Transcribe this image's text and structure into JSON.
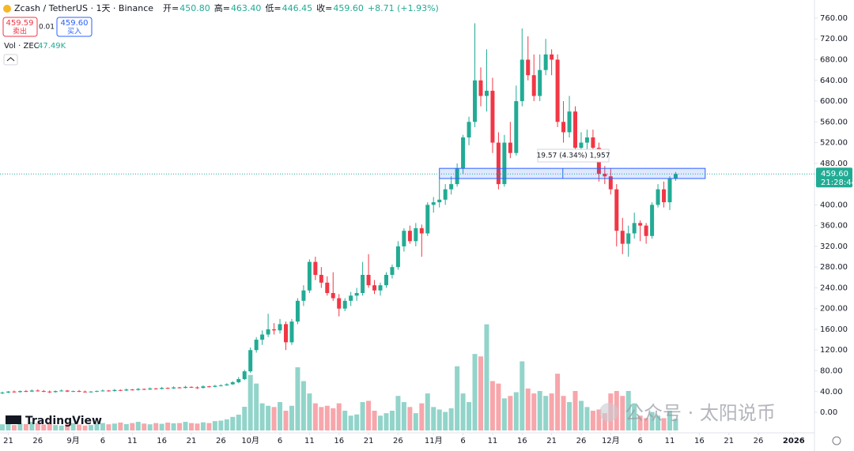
{
  "header": {
    "title": "Zcash / TetherUS · 1天 · Binance",
    "ohlc": [
      {
        "k": "开=",
        "v": "450.80"
      },
      {
        "k": "高=",
        "v": "463.40"
      },
      {
        "k": "低=",
        "v": "446.45"
      },
      {
        "k": "收=",
        "v": "459.60"
      }
    ],
    "change": "+8.71 (+1.93%)",
    "sell": {
      "price": "459.59",
      "label": "卖出"
    },
    "spread": "0.01",
    "buy": {
      "price": "459.60",
      "label": "买入"
    },
    "volume_legend": {
      "label": "Vol · ZEC",
      "value": "47.49K"
    },
    "brand": "TradingView",
    "watermark": "公众号 · 太阳说币"
  },
  "chart_data": {
    "type": "candlestick",
    "up_color": "#22ab94",
    "down_color": "#f23645",
    "up_volume_color": "#92d4ca",
    "down_volume_color": "#f7a6ab",
    "open": [
      37,
      38,
      40,
      39,
      41,
      40,
      42,
      41,
      40,
      39,
      41,
      42,
      40,
      41,
      40,
      39,
      40,
      41,
      42,
      41,
      43,
      42,
      44,
      43,
      45,
      44,
      46,
      45,
      47,
      46,
      48,
      47,
      49,
      48,
      47,
      50,
      49,
      51,
      52,
      54,
      58,
      64,
      79,
      120,
      140,
      150,
      160,
      158,
      170,
      135,
      175,
      215,
      235,
      290,
      265,
      250,
      230,
      220,
      200,
      215,
      225,
      230,
      265,
      245,
      235,
      245,
      265,
      280,
      320,
      350,
      330,
      355,
      345,
      400,
      405,
      410,
      430,
      440,
      470,
      530,
      560,
      640,
      610,
      620,
      520,
      440,
      520,
      500,
      600,
      680,
      650,
      610,
      660,
      690,
      680,
      560,
      540,
      580,
      510,
      520,
      530,
      510,
      460,
      455,
      430,
      350,
      325,
      345,
      365,
      360,
      340,
      400,
      430,
      405,
      450.8
    ],
    "high": [
      40,
      41,
      42,
      42,
      43,
      44,
      44,
      43,
      42,
      42,
      44,
      43,
      42,
      43,
      42,
      41,
      42,
      44,
      43,
      45,
      44,
      46,
      45,
      47,
      46,
      48,
      47,
      49,
      48,
      50,
      49,
      51,
      50,
      50,
      52,
      51,
      53,
      54,
      56,
      60,
      68,
      82,
      125,
      145,
      158,
      190,
      172,
      180,
      175,
      180,
      220,
      245,
      295,
      300,
      280,
      262,
      270,
      228,
      220,
      232,
      240,
      290,
      305,
      255,
      250,
      270,
      285,
      330,
      355,
      360,
      365,
      362,
      405,
      415,
      450,
      440,
      455,
      480,
      535,
      570,
      750,
      665,
      700,
      645,
      540,
      535,
      560,
      630,
      740,
      725,
      690,
      690,
      720,
      700,
      690,
      600,
      610,
      590,
      540,
      545,
      545,
      520,
      475,
      470,
      440,
      375,
      360,
      385,
      370,
      365,
      405,
      440,
      445,
      455,
      463.4
    ],
    "low": [
      35,
      37,
      38,
      38,
      39,
      39,
      40,
      39,
      37,
      38,
      40,
      39,
      39,
      39,
      38,
      38,
      39,
      40,
      40,
      40,
      41,
      41,
      42,
      42,
      43,
      43,
      44,
      44,
      45,
      45,
      46,
      46,
      47,
      45,
      46,
      48,
      48,
      50,
      51,
      53,
      56,
      62,
      76,
      115,
      130,
      145,
      150,
      152,
      120,
      130,
      170,
      205,
      230,
      255,
      240,
      225,
      215,
      185,
      195,
      205,
      215,
      225,
      240,
      228,
      225,
      240,
      258,
      275,
      310,
      325,
      320,
      300,
      340,
      385,
      395,
      400,
      420,
      435,
      460,
      515,
      550,
      590,
      580,
      500,
      430,
      435,
      490,
      495,
      590,
      640,
      600,
      600,
      650,
      650,
      550,
      520,
      530,
      500,
      490,
      505,
      500,
      445,
      440,
      420,
      320,
      305,
      300,
      335,
      330,
      325,
      335,
      395,
      395,
      390,
      446.45
    ],
    "close": [
      38,
      40,
      39,
      41,
      40,
      42,
      41,
      40,
      39,
      41,
      42,
      40,
      41,
      40,
      39,
      40,
      41,
      42,
      41,
      43,
      42,
      44,
      43,
      45,
      44,
      46,
      45,
      47,
      46,
      48,
      47,
      49,
      48,
      47,
      50,
      49,
      51,
      52,
      54,
      58,
      64,
      79,
      120,
      140,
      150,
      160,
      158,
      170,
      135,
      175,
      215,
      235,
      290,
      265,
      250,
      230,
      220,
      200,
      215,
      225,
      230,
      265,
      245,
      235,
      245,
      265,
      280,
      320,
      350,
      330,
      355,
      345,
      400,
      405,
      410,
      430,
      440,
      470,
      530,
      560,
      640,
      610,
      620,
      520,
      440,
      520,
      500,
      600,
      680,
      650,
      610,
      660,
      690,
      680,
      560,
      540,
      580,
      510,
      520,
      530,
      510,
      460,
      455,
      430,
      350,
      325,
      345,
      365,
      360,
      340,
      400,
      430,
      405,
      450.8,
      459.6
    ],
    "volume": [
      25000,
      30000,
      22000,
      28000,
      26000,
      35000,
      30000,
      24000,
      27000,
      22000,
      20000,
      25000,
      30000,
      24000,
      20000,
      22000,
      27000,
      30000,
      25000,
      28000,
      32000,
      26000,
      30000,
      35000,
      28000,
      25000,
      30000,
      27000,
      32000,
      29000,
      30000,
      35000,
      30000,
      28000,
      33000,
      30000,
      38000,
      40000,
      45000,
      55000,
      64000,
      96000,
      225000,
      190000,
      110000,
      100000,
      95000,
      115000,
      80000,
      100000,
      256000,
      200000,
      150000,
      110000,
      95000,
      100000,
      90000,
      110000,
      80000,
      60000,
      65000,
      115000,
      120000,
      80000,
      60000,
      70000,
      80000,
      140000,
      115000,
      95000,
      70000,
      110000,
      150000,
      95000,
      85000,
      75000,
      90000,
      260000,
      150000,
      115000,
      310000,
      300000,
      430000,
      200000,
      190000,
      130000,
      140000,
      155000,
      280000,
      170000,
      150000,
      160000,
      140000,
      150000,
      230000,
      140000,
      115000,
      160000,
      120000,
      95000,
      80000,
      85000,
      70000,
      150000,
      160000,
      140000,
      160000,
      110000,
      60000,
      50000,
      75000,
      60000,
      50000,
      80000,
      47490
    ],
    "ylim": [
      -35,
      795
    ],
    "yticks": [
      {
        "value": 760,
        "label": "760.00"
      },
      {
        "value": 720,
        "label": "720.00"
      },
      {
        "value": 680,
        "label": "680.00"
      },
      {
        "value": 640,
        "label": "640.00"
      },
      {
        "value": 600,
        "label": "600.00"
      },
      {
        "value": 560,
        "label": "560.00"
      },
      {
        "value": 520,
        "label": "520.00"
      },
      {
        "value": 480,
        "label": "480.00"
      },
      {
        "value": 440,
        "label": "440.00"
      },
      {
        "value": 400,
        "label": "400.00"
      },
      {
        "value": 360,
        "label": "360.00"
      },
      {
        "value": 320,
        "label": "320.00"
      },
      {
        "value": 280,
        "label": "280.00"
      },
      {
        "value": 240,
        "label": "240.00"
      },
      {
        "value": 200,
        "label": "200.00"
      },
      {
        "value": 160,
        "label": "160.00"
      },
      {
        "value": 120,
        "label": "120.00"
      },
      {
        "value": 80,
        "label": "80.00"
      },
      {
        "value": 40,
        "label": "40.00"
      },
      {
        "value": 0,
        "label": "0.00"
      }
    ],
    "xlim": [
      -0.4,
      137.5
    ],
    "xticks": [
      {
        "value": 1,
        "label": "21"
      },
      {
        "value": 6,
        "label": "26"
      },
      {
        "value": 12,
        "label": "9月"
      },
      {
        "value": 17,
        "label": "6"
      },
      {
        "value": 22,
        "label": "11"
      },
      {
        "value": 27,
        "label": "16"
      },
      {
        "value": 32,
        "label": "21"
      },
      {
        "value": 37,
        "label": "26"
      },
      {
        "value": 42,
        "label": "10月"
      },
      {
        "value": 47,
        "label": "6"
      },
      {
        "value": 52,
        "label": "11"
      },
      {
        "value": 57,
        "label": "16"
      },
      {
        "value": 62,
        "label": "21"
      },
      {
        "value": 67,
        "label": "26"
      },
      {
        "value": 73,
        "label": "11月"
      },
      {
        "value": 78,
        "label": "6"
      },
      {
        "value": 83,
        "label": "11"
      },
      {
        "value": 88,
        "label": "16"
      },
      {
        "value": 93,
        "label": "21"
      },
      {
        "value": 98,
        "label": "26"
      },
      {
        "value": 103,
        "label": "12月"
      },
      {
        "value": 108,
        "label": "6"
      },
      {
        "value": 113,
        "label": "11"
      },
      {
        "value": 118,
        "label": "16"
      },
      {
        "value": 123,
        "label": "21"
      },
      {
        "value": 128,
        "label": "26"
      },
      {
        "value": 134,
        "label": "2026"
      }
    ],
    "last_price_label": "459.60",
    "countdown": "21:28:44",
    "measure": {
      "x_start": 74,
      "x_end": 119,
      "low": 450.8,
      "high": 470.37,
      "label": "19.57 (4.34%) 1,957"
    }
  }
}
